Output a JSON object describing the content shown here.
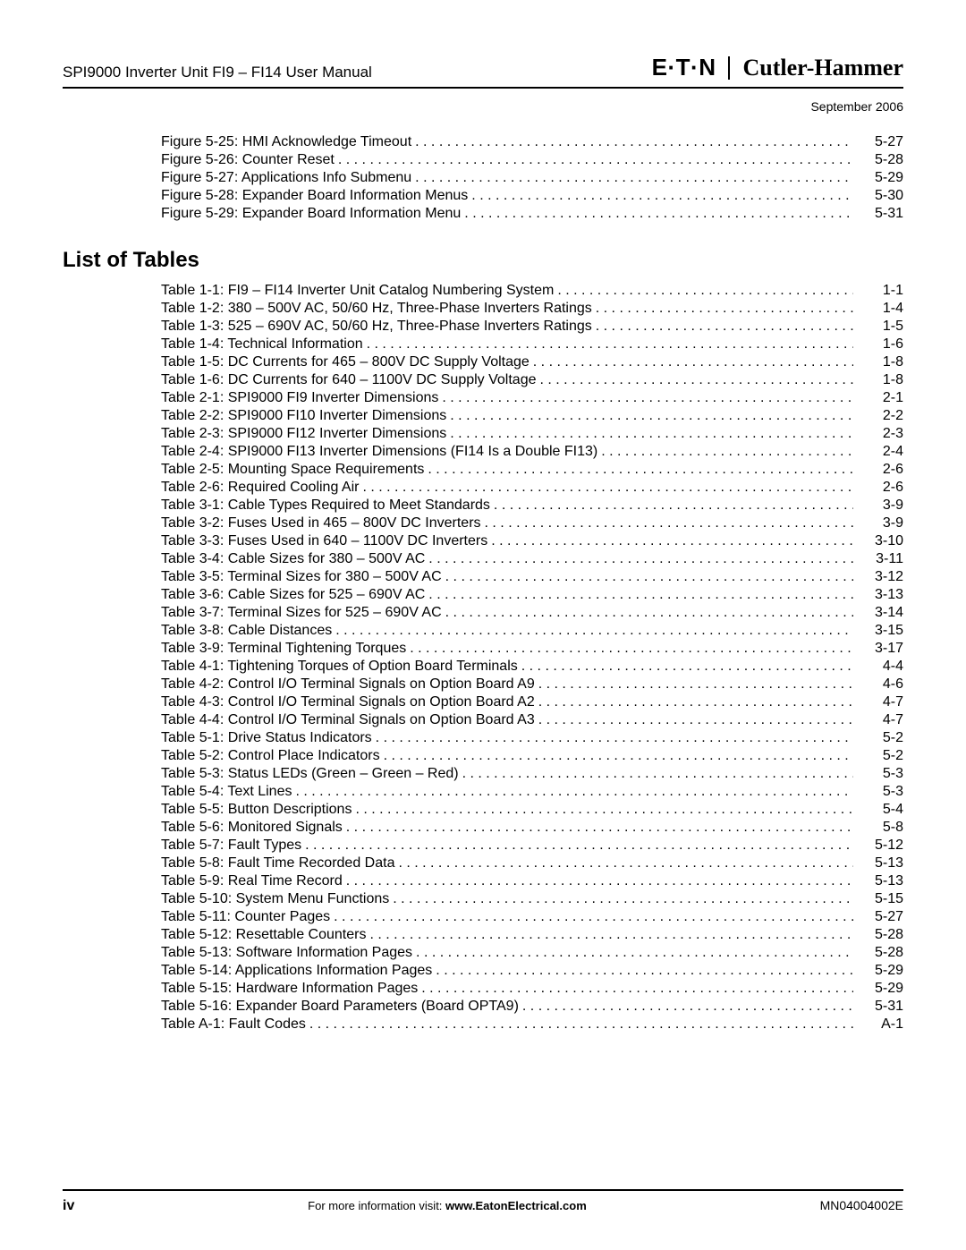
{
  "header": {
    "doc_title": "SPI9000 Inverter Unit FI9 – FI14 User Manual",
    "brand_left": "E·T·N",
    "brand_right": "Cutler-Hammer"
  },
  "date": "September 2006",
  "figures": [
    {
      "label": "Figure 5-25: HMI Acknowledge Timeout",
      "page": "5-27"
    },
    {
      "label": "Figure 5-26: Counter Reset",
      "page": "5-28"
    },
    {
      "label": "Figure 5-27: Applications Info Submenu",
      "page": "5-29"
    },
    {
      "label": "Figure 5-28: Expander Board Information Menus",
      "page": "5-30"
    },
    {
      "label": "Figure 5-29: Expander Board Information Menu",
      "page": "5-31"
    }
  ],
  "tables_heading": "List of Tables",
  "tables": [
    {
      "label": "Table 1-1: FI9 – FI14 Inverter Unit Catalog Numbering System",
      "page": "1-1"
    },
    {
      "label": "Table 1-2: 380 – 500V AC, 50/60 Hz, Three-Phase Inverters Ratings",
      "page": "1-4"
    },
    {
      "label": "Table 1-3: 525 – 690V AC, 50/60 Hz, Three-Phase Inverters Ratings",
      "page": "1-5"
    },
    {
      "label": "Table 1-4: Technical Information",
      "page": "1-6"
    },
    {
      "label": "Table 1-5: DC Currents for 465 – 800V DC Supply Voltage",
      "page": "1-8"
    },
    {
      "label": "Table 1-6: DC Currents for 640 – 1100V DC Supply Voltage",
      "page": "1-8"
    },
    {
      "label": "Table 2-1: SPI9000 FI9 Inverter Dimensions",
      "page": "2-1"
    },
    {
      "label": "Table 2-2: SPI9000 FI10 Inverter Dimensions",
      "page": "2-2"
    },
    {
      "label": "Table 2-3: SPI9000 FI12 Inverter Dimensions",
      "page": "2-3"
    },
    {
      "label": "Table 2-4: SPI9000 FI13 Inverter Dimensions (FI14 Is a Double FI13)",
      "page": "2-4"
    },
    {
      "label": "Table 2-5: Mounting Space Requirements",
      "page": "2-6"
    },
    {
      "label": "Table 2-6: Required Cooling Air",
      "page": "2-6"
    },
    {
      "label": "Table 3-1: Cable Types Required to Meet Standards",
      "page": "3-9"
    },
    {
      "label": "Table 3-2: Fuses Used in 465 – 800V DC Inverters",
      "page": "3-9"
    },
    {
      "label": "Table 3-3: Fuses Used in 640 – 1100V DC Inverters",
      "page": "3-10"
    },
    {
      "label": "Table 3-4: Cable Sizes for 380 – 500V AC",
      "page": "3-11"
    },
    {
      "label": "Table 3-5: Terminal Sizes for 380 – 500V AC",
      "page": "3-12"
    },
    {
      "label": "Table 3-6: Cable Sizes for 525 – 690V AC",
      "page": "3-13"
    },
    {
      "label": "Table 3-7: Terminal Sizes for 525 – 690V AC",
      "page": "3-14"
    },
    {
      "label": "Table 3-8: Cable Distances",
      "page": "3-15"
    },
    {
      "label": "Table 3-9: Terminal Tightening Torques",
      "page": "3-17"
    },
    {
      "label": "Table 4-1: Tightening Torques of Option Board Terminals",
      "page": "4-4"
    },
    {
      "label": "Table 4-2: Control I/O Terminal Signals on Option Board A9",
      "page": "4-6"
    },
    {
      "label": "Table 4-3: Control I/O Terminal Signals on Option Board A2",
      "page": "4-7"
    },
    {
      "label": "Table 4-4: Control I/O Terminal Signals on Option Board A3",
      "page": "4-7"
    },
    {
      "label": "Table 5-1: Drive Status Indicators",
      "page": "5-2"
    },
    {
      "label": "Table 5-2: Control Place Indicators",
      "page": "5-2"
    },
    {
      "label": "Table 5-3: Status LEDs (Green – Green – Red)",
      "page": "5-3"
    },
    {
      "label": "Table 5-4: Text Lines",
      "page": "5-3"
    },
    {
      "label": "Table 5-5: Button Descriptions",
      "page": "5-4"
    },
    {
      "label": "Table 5-6: Monitored Signals",
      "page": "5-8"
    },
    {
      "label": "Table 5-7: Fault Types",
      "page": "5-12"
    },
    {
      "label": "Table 5-8: Fault Time Recorded Data",
      "page": "5-13"
    },
    {
      "label": "Table 5-9: Real Time Record",
      "page": "5-13"
    },
    {
      "label": "Table 5-10: System Menu Functions",
      "page": "5-15"
    },
    {
      "label": "Table 5-11: Counter Pages",
      "page": "5-27"
    },
    {
      "label": "Table 5-12: Resettable Counters",
      "page": "5-28"
    },
    {
      "label": "Table 5-13: Software Information Pages",
      "page": "5-28"
    },
    {
      "label": "Table 5-14: Applications Information Pages",
      "page": "5-29"
    },
    {
      "label": "Table 5-15: Hardware Information Pages",
      "page": "5-29"
    },
    {
      "label": "Table 5-16: Expander Board Parameters (Board OPTA9)",
      "page": "5-31"
    },
    {
      "label": "Table A-1: Fault Codes",
      "page": "A-1"
    }
  ],
  "footer": {
    "page_num": "iv",
    "center_prefix": "For more information visit: ",
    "center_bold": "www.EatonElectrical.com",
    "doc_code": "MN04004002E"
  }
}
